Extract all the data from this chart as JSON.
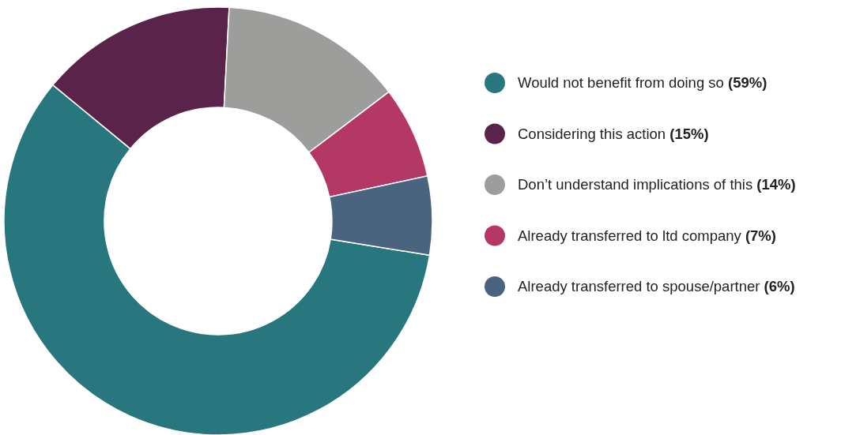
{
  "chart_data": {
    "type": "donut",
    "categories": [
      "Would not benefit from doing so",
      "Considering this action",
      "Don’t understand implications of this",
      "Already transferred to ltd company",
      "Already transferred to spouse/partner"
    ],
    "values": [
      59,
      15,
      14,
      7,
      6
    ],
    "colors": [
      "#28767e",
      "#5a2349",
      "#9d9d9b",
      "#b43865",
      "#4a6480"
    ],
    "value_labels": [
      "(59%)",
      "(15%)",
      "(14%)",
      "(7%)",
      "(6%)"
    ],
    "legend": "right"
  }
}
